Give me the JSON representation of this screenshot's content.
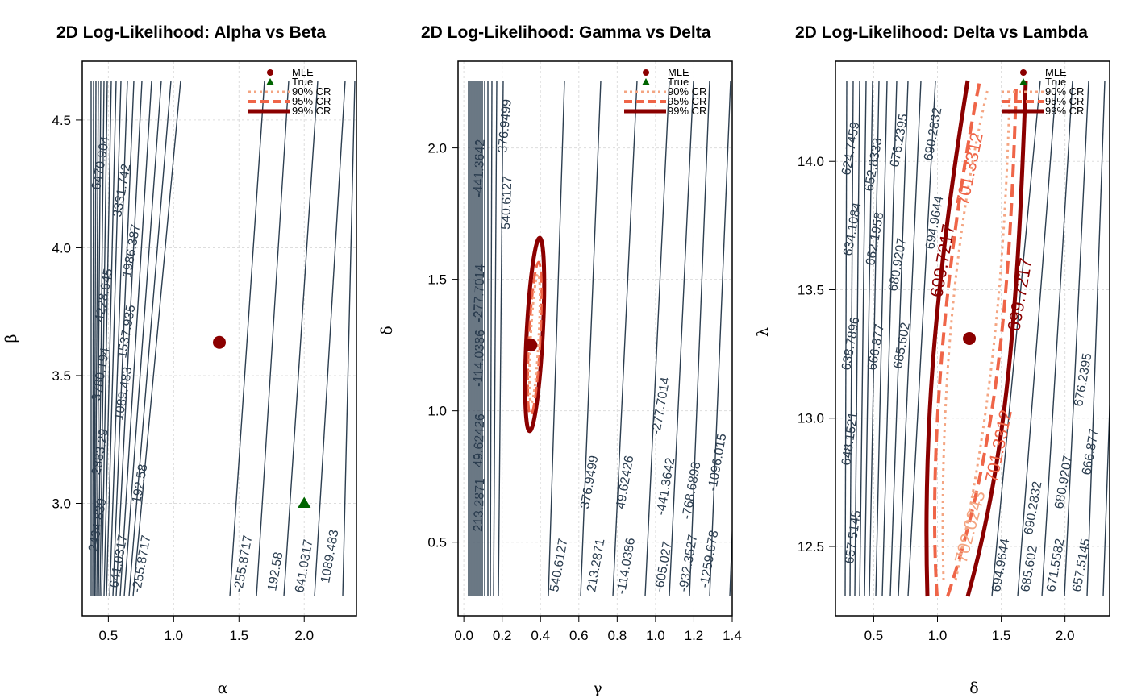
{
  "chart_data": [
    {
      "type": "contour",
      "title": "2D Log-Likelihood: Alpha vs Beta",
      "xlabel": "α",
      "ylabel": "β",
      "xlim": [
        0.3,
        2.4
      ],
      "ylim": [
        2.56,
        4.73
      ],
      "xticks": [
        "0.5",
        "1.0",
        "1.5",
        "2.0"
      ],
      "yticks": [
        "3.0",
        "3.5",
        "4.0",
        "4.5"
      ],
      "xtick_values": [
        0.5,
        1.0,
        1.5,
        2.0
      ],
      "ytick_values": [
        3.0,
        3.5,
        4.0,
        4.5
      ],
      "contour_labels": [
        "6470.904",
        "3331.742",
        "1986.387",
        "4228.645",
        "1537.935",
        "3780.194",
        "1089.483",
        "2883.29",
        "192.58",
        "2434.839",
        "641.0317",
        "-255.8717",
        "-255.8717",
        "192.58",
        "641.0317",
        "1089.483"
      ],
      "mle": {
        "x": 1.35,
        "y": 3.63
      },
      "true_value": {
        "x": 2.0,
        "y": 3.0
      },
      "grid": true,
      "legend_position": "top-right"
    },
    {
      "type": "contour",
      "title": "2D Log-Likelihood: Gamma vs Delta",
      "xlabel": "γ",
      "ylabel": "δ",
      "xlim": [
        -0.03,
        1.4
      ],
      "ylim": [
        0.22,
        2.33
      ],
      "xticks": [
        "0.0",
        "0.2",
        "0.4",
        "0.6",
        "0.8",
        "1.0",
        "1.2",
        "1.4"
      ],
      "yticks": [
        "0.5",
        "1.0",
        "1.5",
        "2.0"
      ],
      "xtick_values": [
        0.0,
        0.2,
        0.4,
        0.6,
        0.8,
        1.0,
        1.2,
        1.4
      ],
      "ytick_values": [
        0.5,
        1.0,
        1.5,
        2.0
      ],
      "contour_labels": [
        "376.9499",
        "540.6127",
        "-441.3642",
        "-277.7014",
        "-114.0386",
        "49.62426",
        "213.2871",
        "540.6127",
        "213.2871",
        "-114.0386",
        "-605.027",
        "-932.3527",
        "-1259.678",
        "376.9499",
        "49.62426",
        "-277.7014",
        "-441.3642",
        "-768.6898",
        "-1096.015"
      ],
      "mle": {
        "x": 0.35,
        "y": 1.25
      },
      "grid": true,
      "legend_position": "top-right"
    },
    {
      "type": "contour",
      "title": "2D Log-Likelihood: Delta vs Lambda",
      "xlabel": "δ",
      "ylabel": "λ",
      "xlim": [
        0.2,
        2.35
      ],
      "ylim": [
        12.23,
        14.39
      ],
      "xticks": [
        "0.5",
        "1.0",
        "1.5",
        "2.0"
      ],
      "yticks": [
        "12.5",
        "13.0",
        "13.5",
        "14.0"
      ],
      "xtick_values": [
        0.5,
        1.0,
        1.5,
        2.0
      ],
      "ytick_values": [
        12.5,
        13.0,
        13.5,
        14.0
      ],
      "contour_labels": [
        "624.7459",
        "634.1084",
        "638.7896",
        "648.1521",
        "657.5145",
        "652.8333",
        "662.1958",
        "666.877",
        "676.2395",
        "680.9207",
        "685.602",
        "690.2832",
        "694.9644",
        "694.9644",
        "685.602",
        "671.5582",
        "657.5145",
        "666.877",
        "680.9207",
        "690.2832",
        "676.2395"
      ],
      "cr_labels": [
        "699.7217",
        "699.7217",
        "701.3312",
        "701.3312",
        "702.0243"
      ],
      "mle": {
        "x": 1.25,
        "y": 13.31
      },
      "grid": true,
      "legend_position": "top-right"
    }
  ],
  "legend": [
    {
      "label": "MLE",
      "marker": "point",
      "color": "#8b0000"
    },
    {
      "label": "True",
      "marker": "triangle",
      "color": "#006400"
    },
    {
      "label": "90% CR",
      "style": "dotted",
      "color": "#f4a582"
    },
    {
      "label": "95% CR",
      "style": "dashed",
      "color": "#ef6548"
    },
    {
      "label": "99% CR",
      "style": "solid",
      "color": "#8b0000"
    }
  ],
  "colors": {
    "contour": "#2c3e50",
    "cr90": "#f4a582",
    "cr95": "#ef6548",
    "cr99": "#8b0000",
    "mle": "#8b0000",
    "true": "#006400",
    "grid": "#dddddd"
  }
}
